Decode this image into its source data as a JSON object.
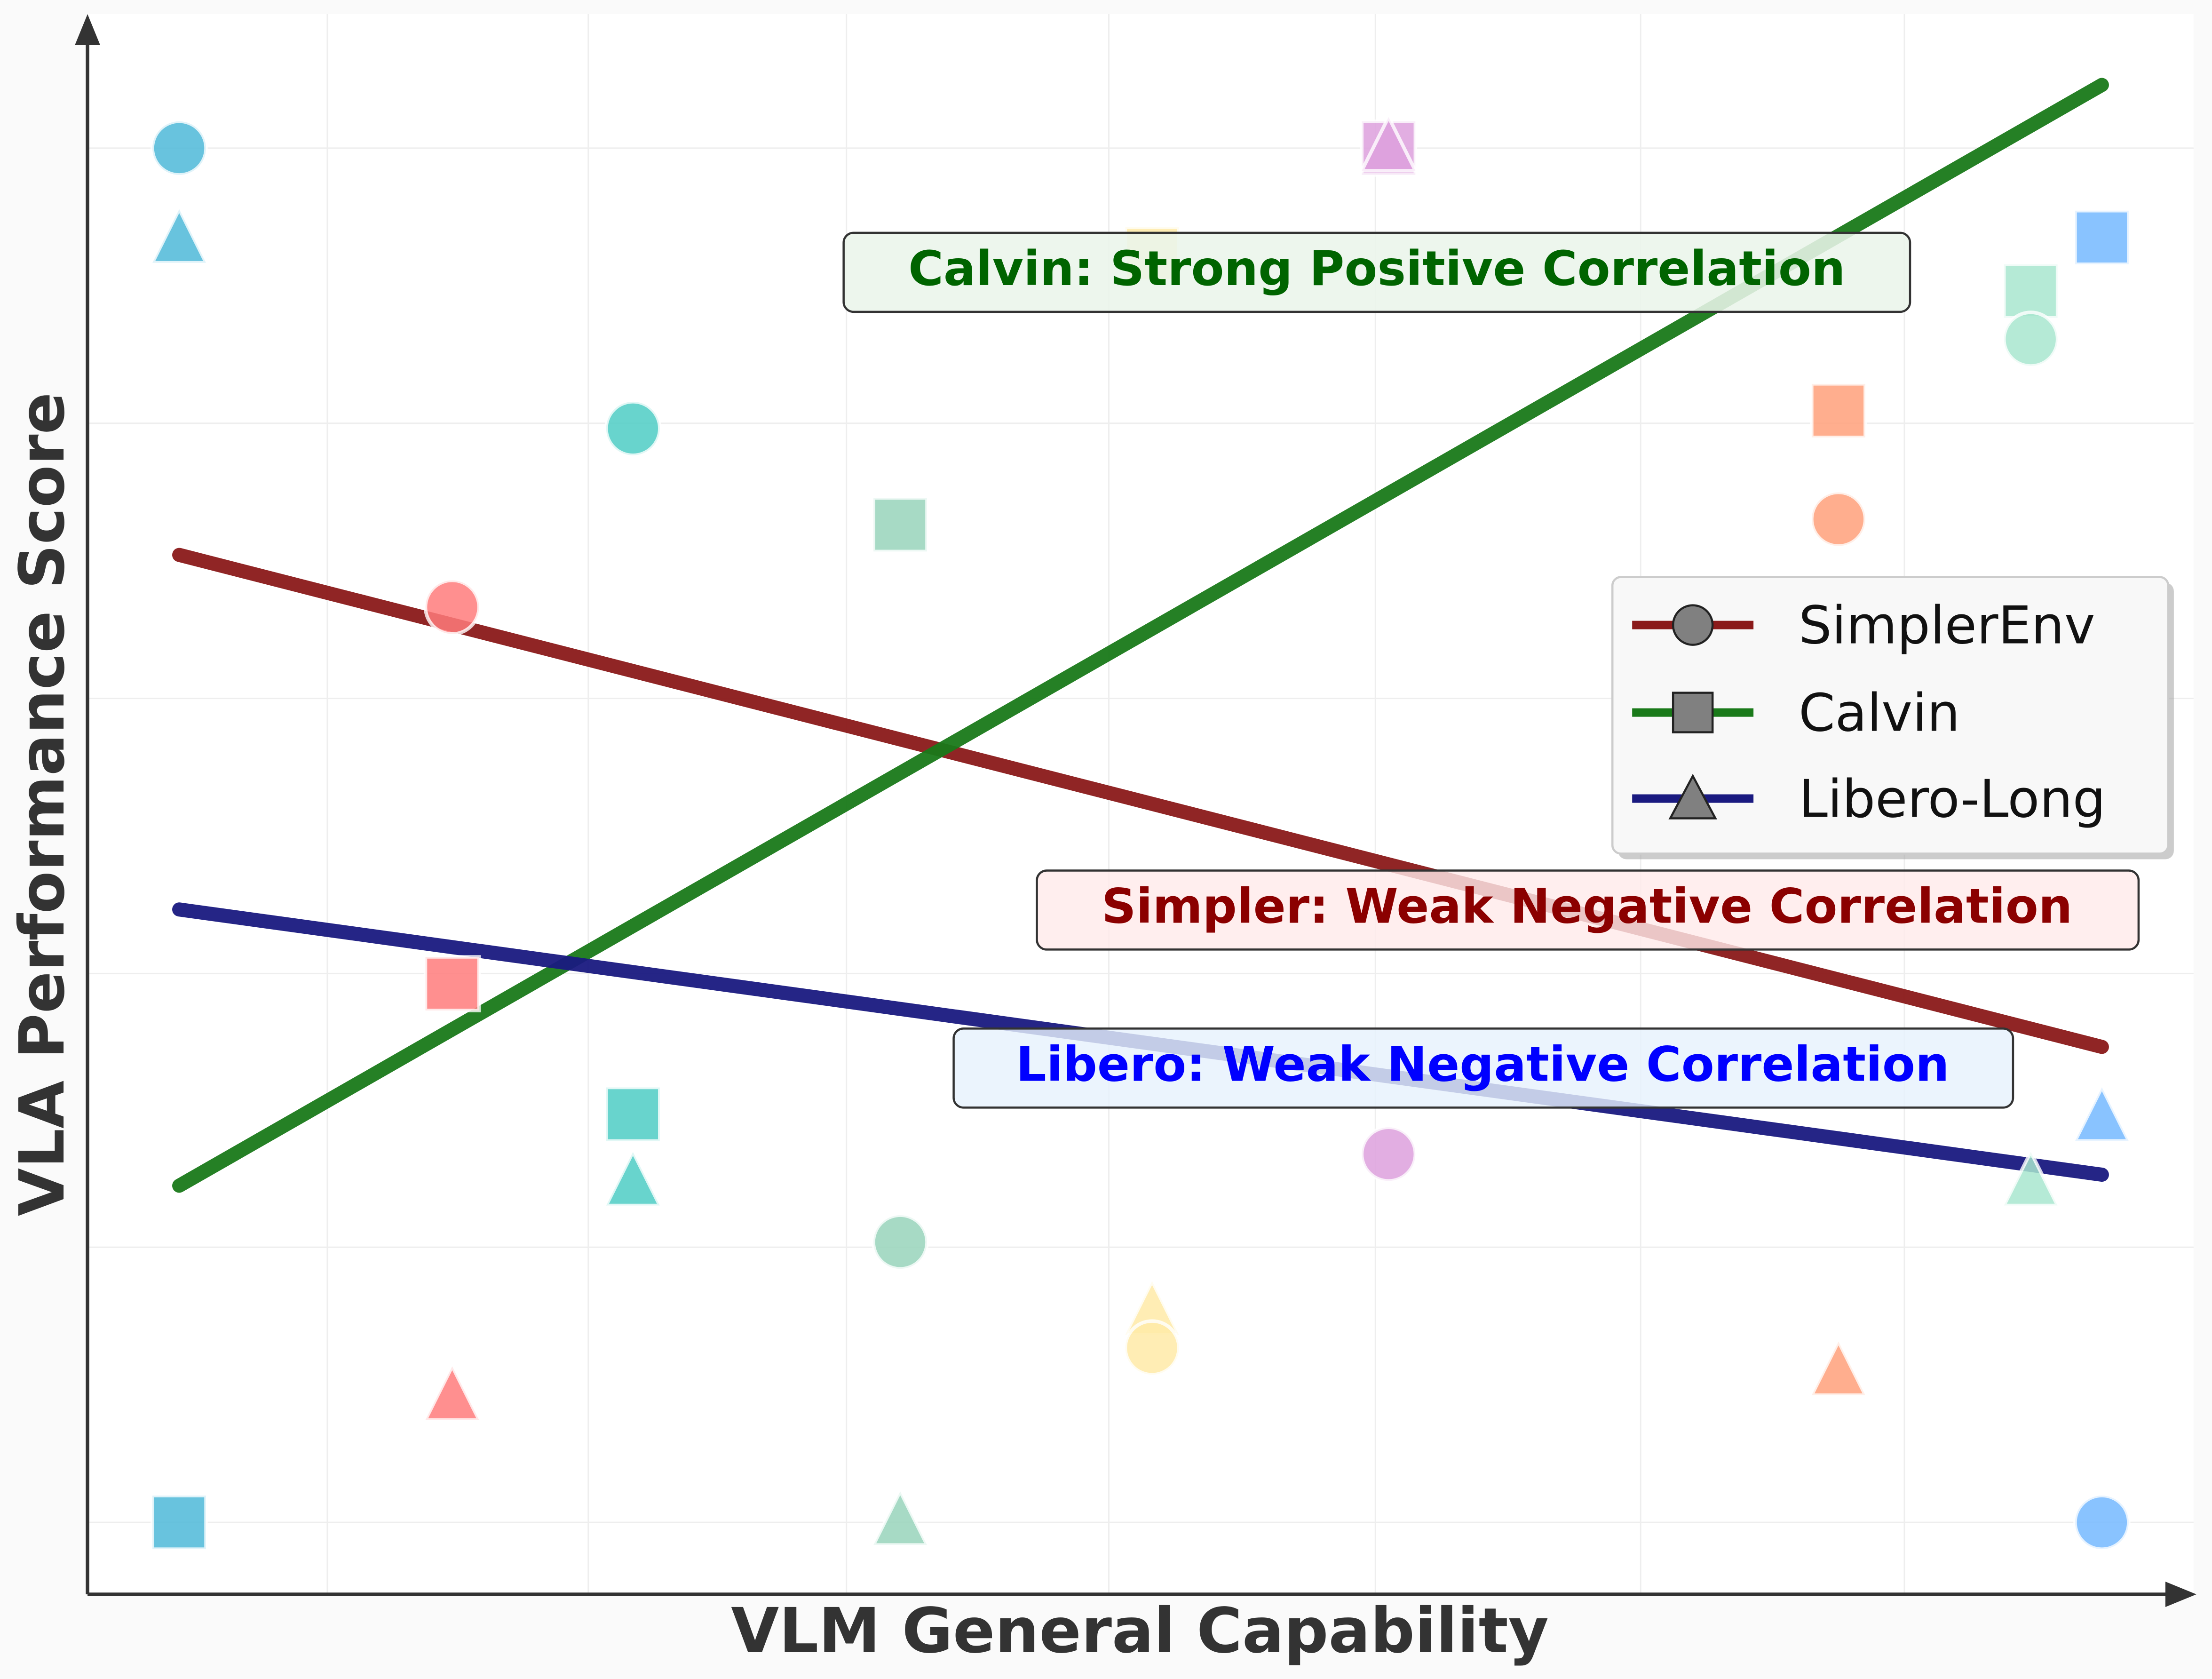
{
  "chart_data": {
    "type": "scatter",
    "xlabel": "VLM General Capability",
    "ylabel": "VLA Performance Score",
    "xlim": [
      -0.05,
      1.05
    ],
    "ylim": [
      -0.05,
      1.1
    ],
    "grid": true,
    "ticks_shown": false,
    "legend": {
      "placement": "center-right",
      "entries": [
        {
          "name": "SimplerEnv",
          "marker": "circle",
          "color": "#8b1a1a"
        },
        {
          "name": "Calvin",
          "marker": "square",
          "color": "#1a7a1a"
        },
        {
          "name": "Libero-Long",
          "marker": "triangle",
          "color": "#1a1a80"
        }
      ]
    },
    "models": [
      {
        "color": "#4db8d8",
        "x": 0.0,
        "simpler": 1.0,
        "calvin": 0.0,
        "libero": 0.933
      },
      {
        "color": "#ff7b7b",
        "x": 0.142,
        "simpler": 0.666,
        "calvin": 0.392,
        "libero": 0.091
      },
      {
        "color": "#4ecdc4",
        "x": 0.236,
        "simpler": 0.796,
        "calvin": 0.297,
        "libero": 0.247
      },
      {
        "color": "#98d4bb",
        "x": 0.375,
        "simpler": 0.204,
        "calvin": 0.726,
        "libero": 0.0
      },
      {
        "color": "#ffeaa7",
        "x": 0.506,
        "simpler": 0.127,
        "calvin": 0.923,
        "libero": 0.153
      },
      {
        "color": "#dda0dd",
        "x": 0.629,
        "simpler": 0.268,
        "calvin": 1.0,
        "libero": 1.0
      },
      {
        "color": "#ffa07a",
        "x": 0.863,
        "simpler": 0.73,
        "calvin": 0.809,
        "libero": 0.109
      },
      {
        "color": "#a8e6cf",
        "x": 0.963,
        "simpler": 0.861,
        "calvin": 0.896,
        "libero": 0.247
      },
      {
        "color": "#74b9ff",
        "x": 1.0,
        "simpler": 0.0,
        "calvin": 0.935,
        "libero": 0.294
      }
    ],
    "trend_lines": [
      {
        "series": "SimplerEnv",
        "color": "#8b1a1a",
        "x": [
          0,
          1
        ],
        "y": [
          0.704,
          0.346
        ]
      },
      {
        "series": "Calvin",
        "color": "#1a7a1a",
        "x": [
          0,
          1
        ],
        "y": [
          0.245,
          1.046
        ]
      },
      {
        "series": "Libero-Long",
        "color": "#1a1a80",
        "x": [
          0,
          1
        ],
        "y": [
          0.446,
          0.253
        ]
      }
    ],
    "annotations": [
      {
        "text": "Calvin: Strong Positive Correlation",
        "color": "#006400",
        "background": "#eaf5ea"
      },
      {
        "text": "Simpler: Weak Negative Correlation",
        "color": "#8b0000",
        "background": "#ffeaea"
      },
      {
        "text": "Libero: Weak Negative Correlation",
        "color": "#0000ff",
        "background": "#e6f2fc"
      }
    ]
  }
}
